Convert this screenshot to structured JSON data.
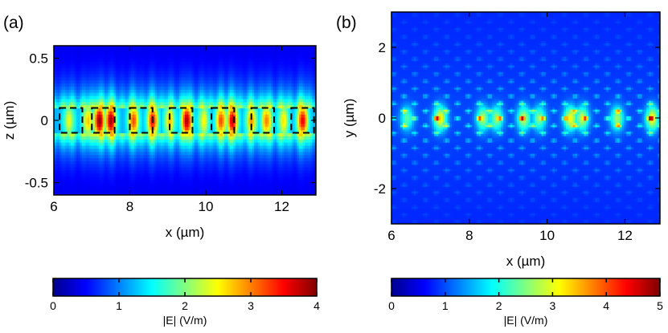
{
  "chart_data": [
    {
      "type": "heatmap",
      "panel_label": "(a)",
      "xlabel": "x (µm)",
      "ylabel": "z (µm)",
      "xlim": [
        6,
        12.9
      ],
      "ylim": [
        -0.6,
        0.6
      ],
      "xticks": [
        "6",
        "8",
        "10",
        "12"
      ],
      "xtick_values": [
        6,
        8,
        10,
        12
      ],
      "yticks": [
        "0.5",
        "0",
        "-0.5"
      ],
      "ytick_values": [
        0.5,
        0,
        -0.5
      ],
      "waveguide_core_z": [
        -0.1,
        0.1
      ],
      "waveguide_segments_x": [
        [
          6.15,
          6.75
        ],
        [
          7.0,
          7.6
        ],
        [
          8.0,
          8.6
        ],
        [
          9.05,
          9.65
        ],
        [
          10.15,
          10.75
        ],
        [
          11.2,
          11.8
        ],
        [
          12.25,
          12.85
        ]
      ],
      "field_hotspots": [
        {
          "x": 6.4,
          "E": 1.8
        },
        {
          "x": 6.9,
          "E": 2.2
        },
        {
          "x": 7.2,
          "E": 4.0
        },
        {
          "x": 7.5,
          "E": 3.9
        },
        {
          "x": 8.1,
          "E": 2.9
        },
        {
          "x": 8.6,
          "E": 3.3
        },
        {
          "x": 9.05,
          "E": 2.2
        },
        {
          "x": 9.5,
          "E": 3.8
        },
        {
          "x": 9.95,
          "E": 1.9
        },
        {
          "x": 10.4,
          "E": 2.9
        },
        {
          "x": 10.7,
          "E": 3.6
        },
        {
          "x": 11.2,
          "E": 2.5
        },
        {
          "x": 11.6,
          "E": 2.6
        },
        {
          "x": 12.05,
          "E": 2.0
        },
        {
          "x": 12.55,
          "E": 3.4
        }
      ],
      "colorbar": {
        "label": "|E| (V/m)",
        "ticks": [
          "0",
          "1",
          "2",
          "3",
          "4"
        ],
        "tick_values": [
          0,
          1,
          2,
          3,
          4
        ],
        "range": [
          0,
          4
        ]
      }
    },
    {
      "type": "heatmap",
      "panel_label": "(b)",
      "xlabel": "x (µm)",
      "ylabel": "y (µm)",
      "xlim": [
        6,
        12.9
      ],
      "ylim": [
        -3,
        3
      ],
      "xticks": [
        "6",
        "8",
        "10",
        "12"
      ],
      "xtick_values": [
        6,
        8,
        10,
        12
      ],
      "yticks": [
        "2",
        "0",
        "-2"
      ],
      "ytick_values": [
        2,
        0,
        -2
      ],
      "field_hotspots": [
        {
          "x": 6.4,
          "E": 2.4
        },
        {
          "x": 7.25,
          "E": 4.0
        },
        {
          "x": 8.35,
          "E": 3.2
        },
        {
          "x": 8.7,
          "E": 3.0
        },
        {
          "x": 9.4,
          "E": 3.4
        },
        {
          "x": 9.8,
          "E": 2.8
        },
        {
          "x": 10.6,
          "E": 3.9
        },
        {
          "x": 10.9,
          "E": 3.4
        },
        {
          "x": 11.8,
          "E": 3.0
        },
        {
          "x": 12.7,
          "E": 3.9
        }
      ],
      "colorbar": {
        "label": "|E| (V/m)",
        "ticks": [
          "0",
          "1",
          "2",
          "3",
          "4",
          "5"
        ],
        "tick_values": [
          0,
          1,
          2,
          3,
          4,
          5
        ],
        "range": [
          0,
          5
        ]
      }
    }
  ]
}
